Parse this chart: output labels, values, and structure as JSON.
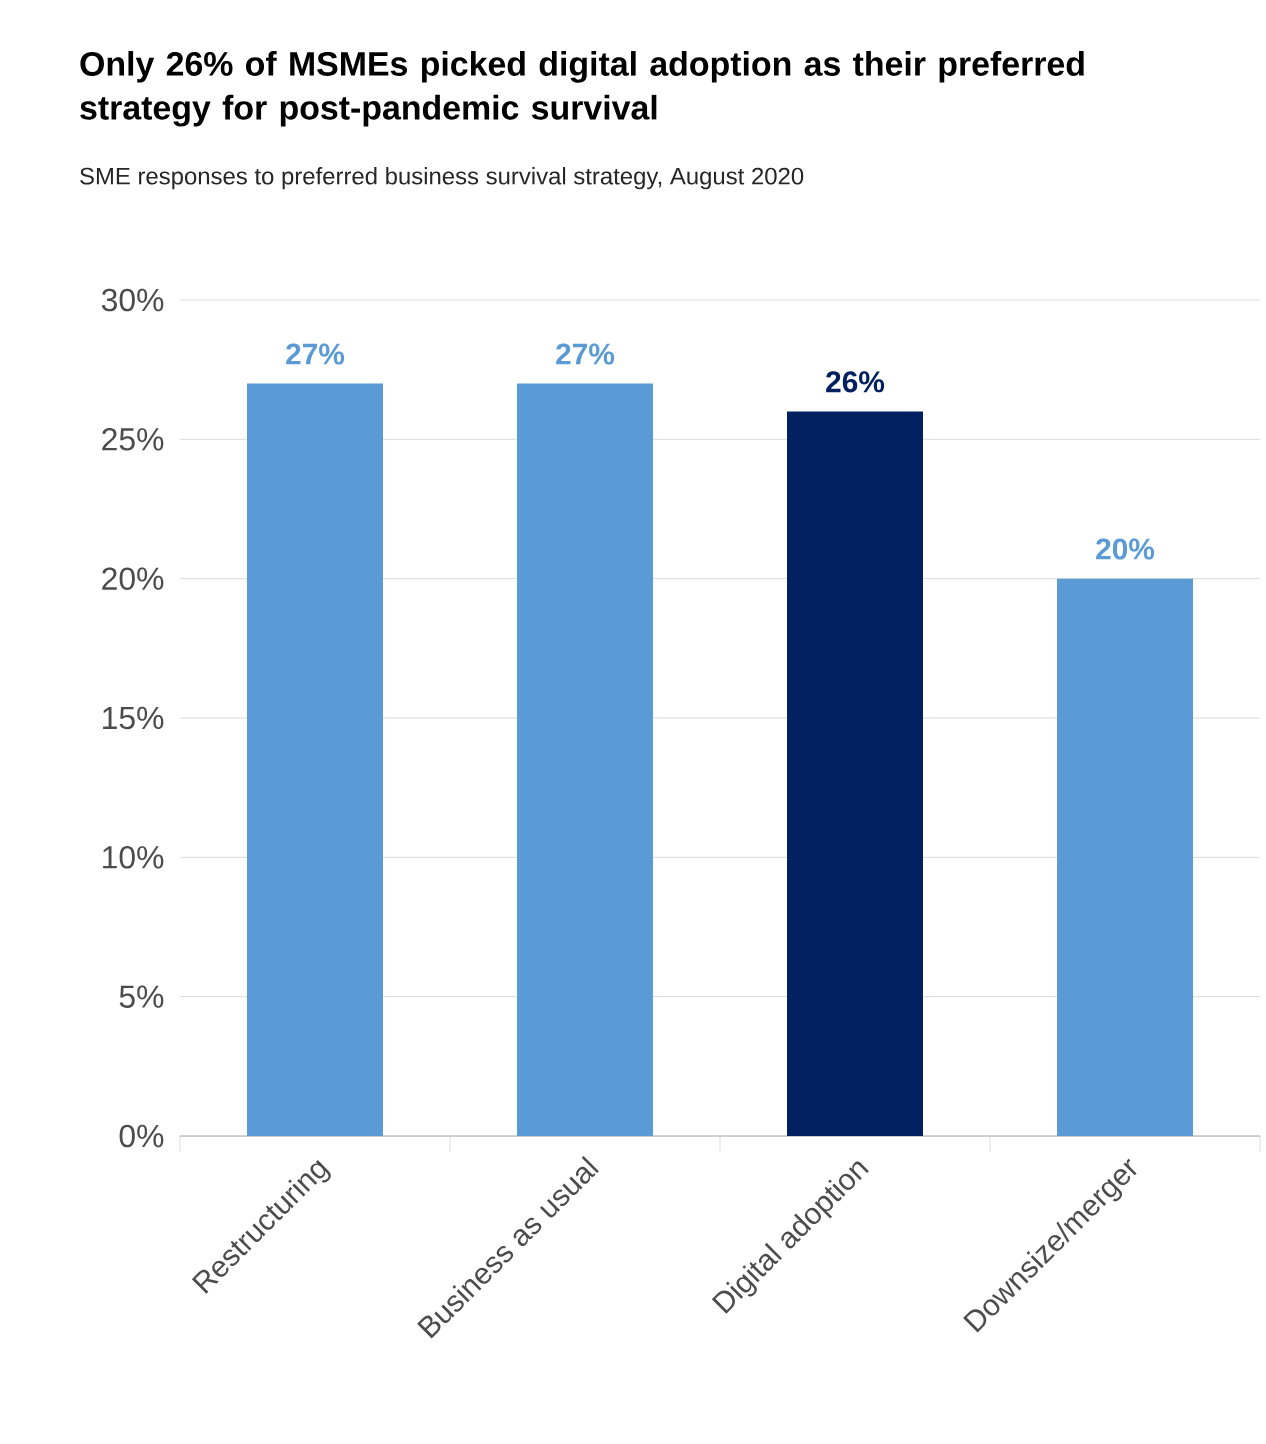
{
  "chart_data": {
    "type": "bar",
    "title": "Only 26% of MSMEs picked digital adoption as their preferred strategy for post-pandemic survival",
    "subtitle": "SME responses to preferred business survival strategy, August 2020",
    "categories": [
      "Restructuring",
      "Business as usual",
      "Digital adoption",
      "Downsize/merger"
    ],
    "values": [
      27,
      27,
      26,
      20
    ],
    "colors": [
      "#5b9bd5",
      "#5b9bd5",
      "#002060",
      "#5b9bd5"
    ],
    "value_labels": [
      "27%",
      "27%",
      "26%",
      "20%"
    ],
    "ylim": [
      0,
      30
    ],
    "yticks": [
      {
        "value": 0,
        "label": "0%"
      },
      {
        "value": 5,
        "label": "5%"
      },
      {
        "value": 10,
        "label": "10%"
      },
      {
        "value": 15,
        "label": "15%"
      },
      {
        "value": 20,
        "label": "20%"
      },
      {
        "value": 25,
        "label": "25%"
      },
      {
        "value": 30,
        "label": "30%"
      }
    ],
    "grid": "y"
  }
}
